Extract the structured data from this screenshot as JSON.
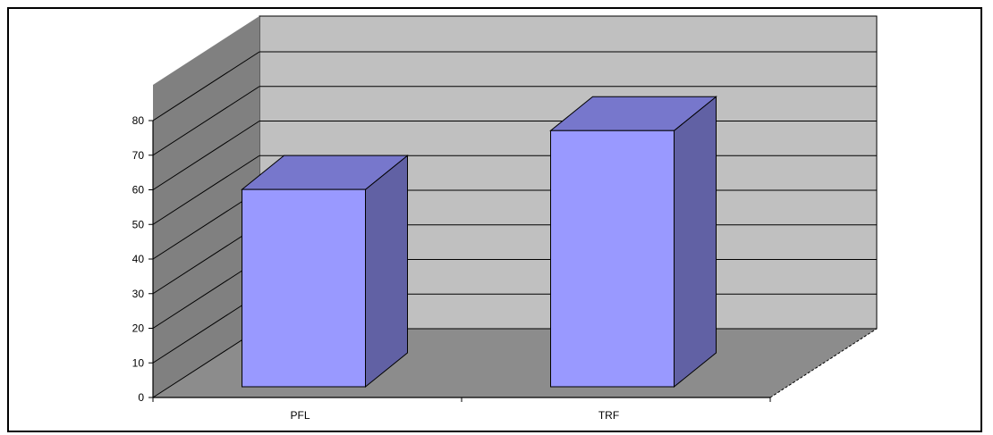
{
  "chart_data": {
    "type": "bar",
    "style": "3d-column",
    "categories": [
      "PFL",
      "TRF"
    ],
    "values": [
      57,
      74
    ],
    "ylim": [
      0,
      80
    ],
    "y_ticks": [
      "0",
      "10",
      "20",
      "30",
      "40",
      "50",
      "60",
      "70",
      "80"
    ],
    "title": "",
    "xlabel": "",
    "ylabel": "",
    "grid": true,
    "legend": "none",
    "colors": {
      "bar_front": "#9999ff",
      "bar_top": "#7777cc",
      "bar_side": "#6161a4",
      "back_wall": "#c0c0c0",
      "side_wall": "#808080",
      "floor": "#8c8c8c",
      "gridline": "#000000"
    }
  }
}
